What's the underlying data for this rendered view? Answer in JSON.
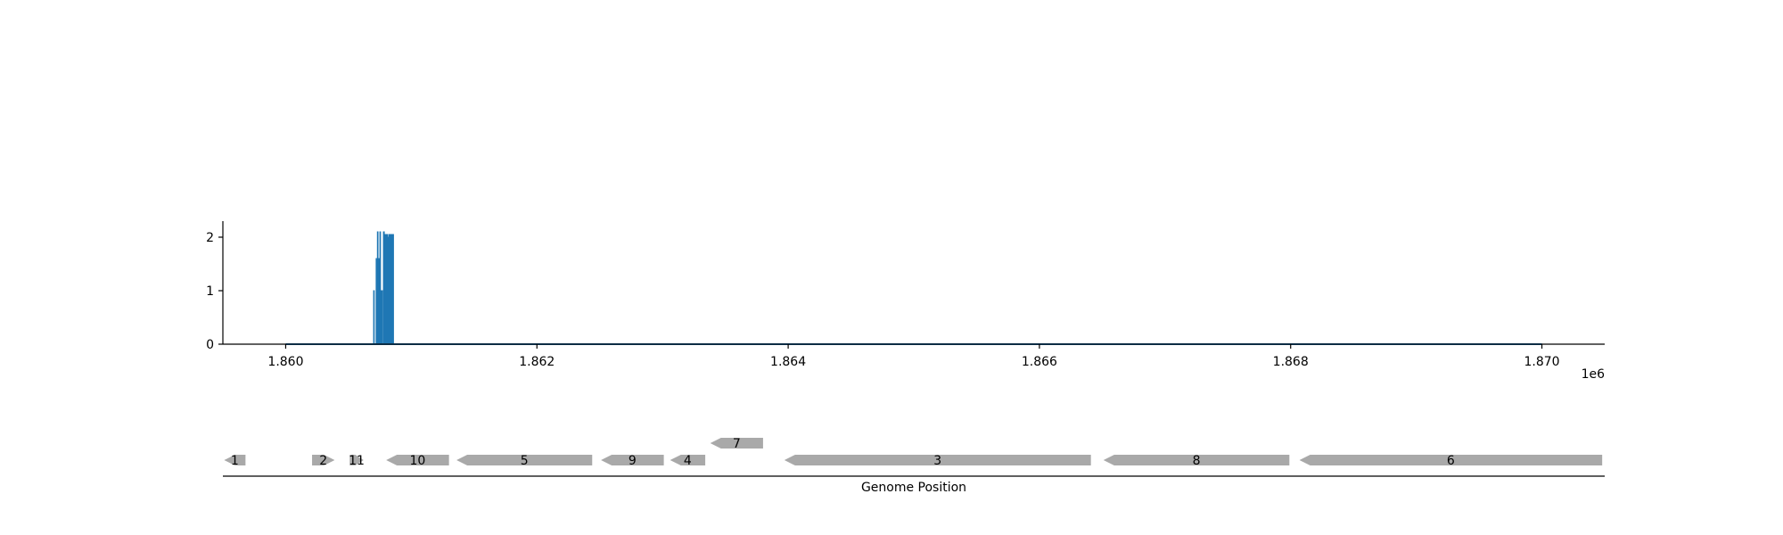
{
  "chart_data": [
    {
      "type": "area",
      "title": "",
      "xlabel": "",
      "ylabel": "",
      "x_offset_label": "1e6",
      "xlim": [
        1859500,
        1870500
      ],
      "ylim": [
        0,
        2.3
      ],
      "xticks": [
        1860000,
        1862000,
        1864000,
        1866000,
        1868000,
        1870000
      ],
      "xtick_labels": [
        "1.860",
        "1.862",
        "1.864",
        "1.866",
        "1.868",
        "1.870"
      ],
      "yticks": [
        0,
        1,
        2
      ],
      "ytick_labels": [
        "0",
        "1",
        "2"
      ],
      "grid": false,
      "color": "#1f77b4",
      "baseline_range": [
        1860000,
        1870000
      ],
      "series": [
        {
          "x": [
            1860700,
            1860705,
            1860720,
            1860730,
            1860735,
            1860740,
            1860745,
            1860750,
            1860755,
            1860760,
            1860770,
            1860778,
            1860785,
            1860790,
            1860800,
            1860810,
            1860820,
            1860830
          ],
          "values": [
            1.0,
            0.0,
            1.6,
            2.1,
            1.6,
            0.0,
            1.6,
            2.1,
            0.0,
            1.0,
            0.0,
            2.1,
            2.05,
            2.05,
            2.05,
            2.0,
            2.05,
            2.05
          ]
        }
      ]
    },
    {
      "type": "gene_track",
      "xlabel": "Genome Position",
      "xlim": [
        1859500,
        1870500
      ],
      "color": "#a9a9a9",
      "genes": [
        {
          "label": "1",
          "start": 1859510,
          "end": 1859680,
          "strand": "-",
          "row": 0
        },
        {
          "label": "2",
          "start": 1860210,
          "end": 1860390,
          "strand": "+",
          "row": 0
        },
        {
          "label": "11",
          "start": 1860510,
          "end": 1860620,
          "strand": "+",
          "row": 0
        },
        {
          "label": "10",
          "start": 1860800,
          "end": 1861300,
          "strand": "-",
          "row": 0
        },
        {
          "label": "5",
          "start": 1861360,
          "end": 1862440,
          "strand": "-",
          "row": 0
        },
        {
          "label": "9",
          "start": 1862510,
          "end": 1863010,
          "strand": "-",
          "row": 0
        },
        {
          "label": "4",
          "start": 1863060,
          "end": 1863340,
          "strand": "-",
          "row": 0
        },
        {
          "label": "7",
          "start": 1863380,
          "end": 1863800,
          "strand": "-",
          "row": 1
        },
        {
          "label": "3",
          "start": 1863970,
          "end": 1866410,
          "strand": "-",
          "row": 0
        },
        {
          "label": "8",
          "start": 1866510,
          "end": 1867990,
          "strand": "-",
          "row": 0
        },
        {
          "label": "6",
          "start": 1868070,
          "end": 1870480,
          "strand": "-",
          "row": 0
        }
      ]
    }
  ]
}
